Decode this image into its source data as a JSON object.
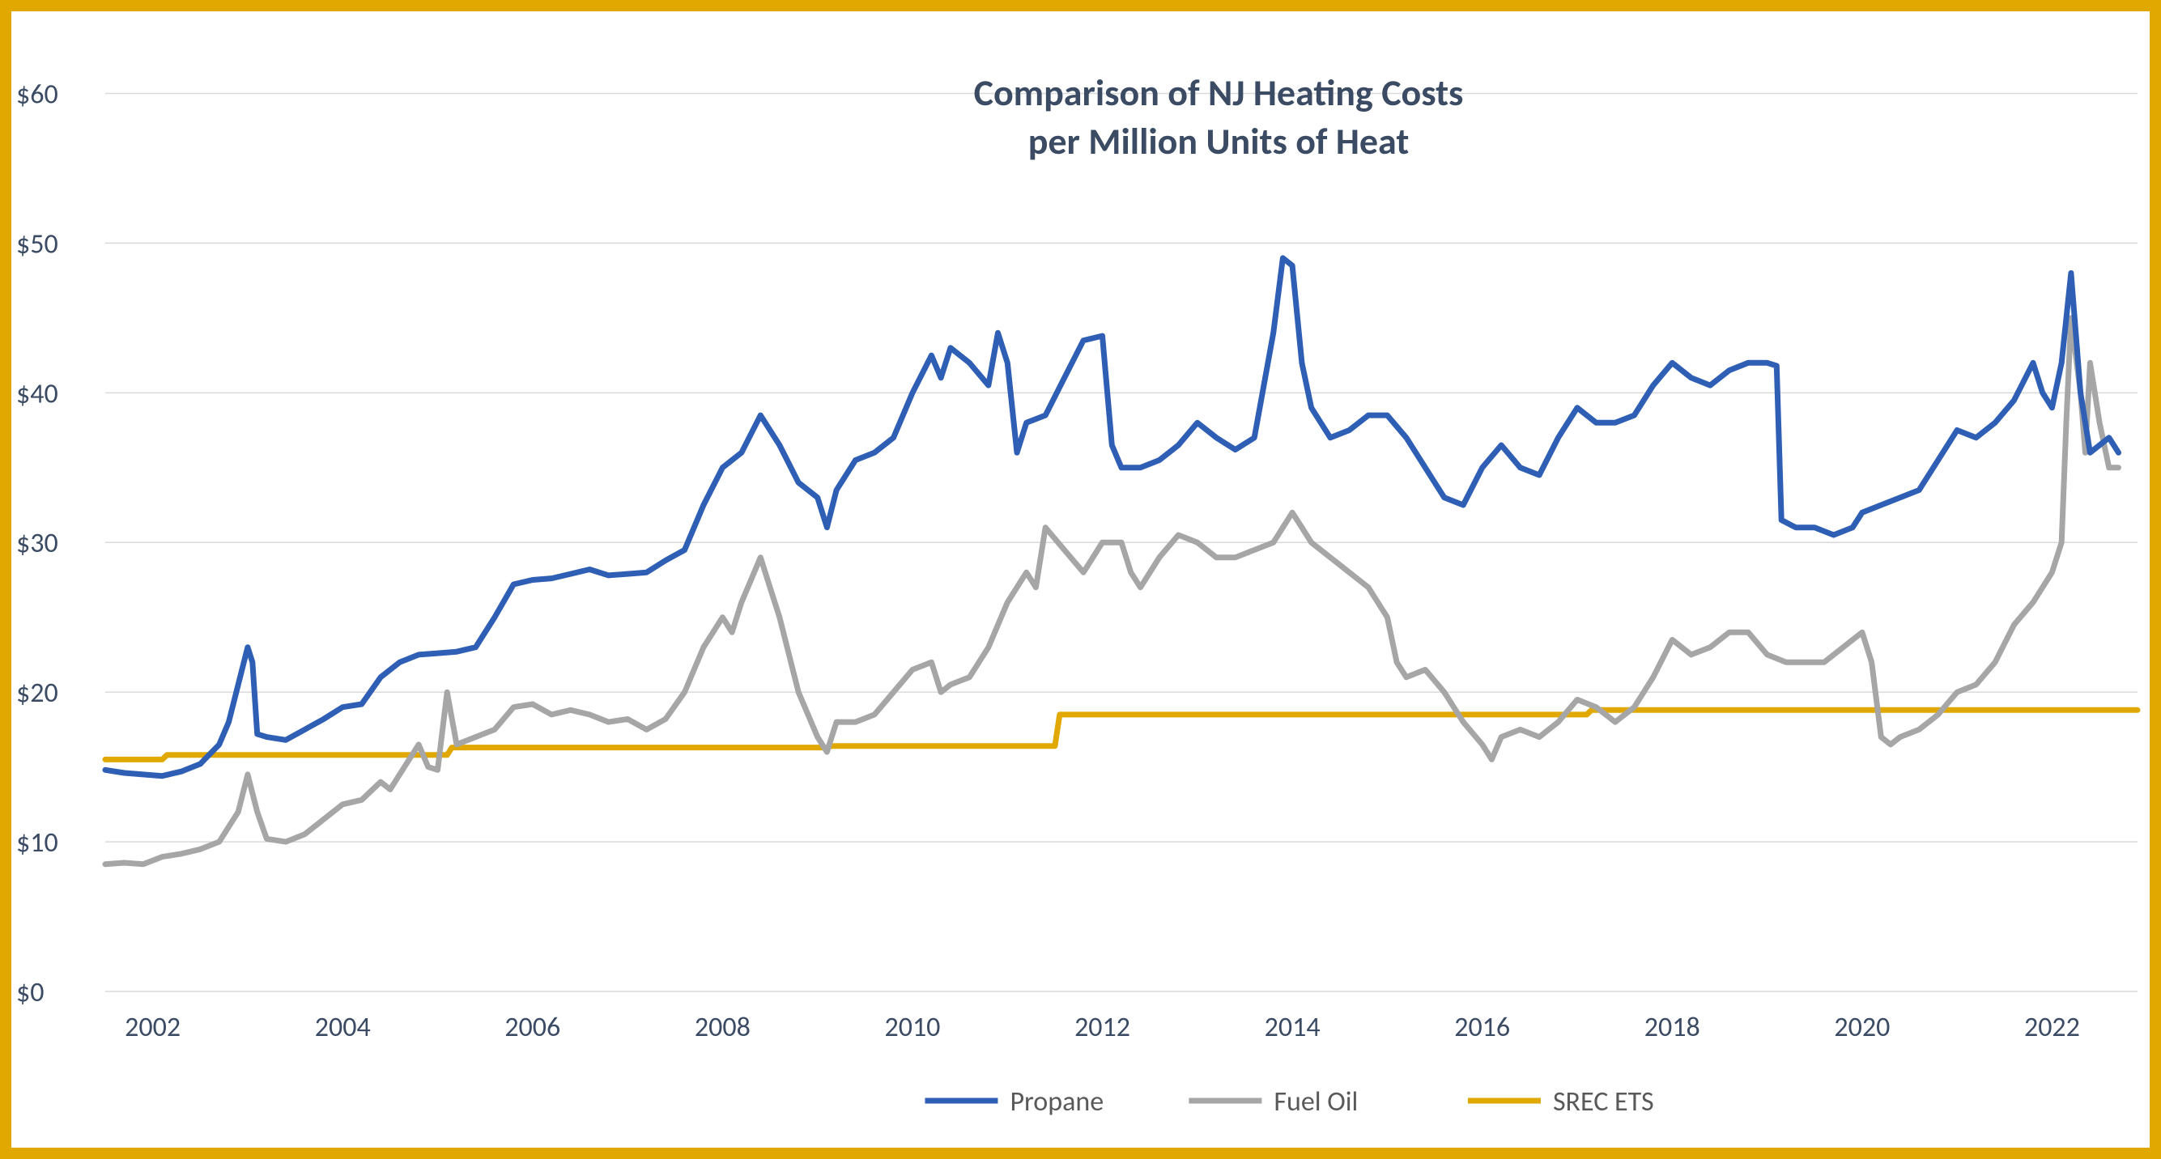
{
  "chart": {
    "type": "line",
    "title_line1": "Comparison of NJ Heating Costs",
    "title_line2": "per Million Units of Heat",
    "title_color": "#3b4b63",
    "title_fontsize": 46,
    "frame_border_color": "#e0a800",
    "frame_border_width": 14,
    "background_color": "#ffffff",
    "grid_color": "#d9d9d9",
    "grid_width": 1.5,
    "axis_label_color": "#3b4b63",
    "axis_label_fontsize": 34,
    "x": {
      "min": 2001.5,
      "max": 2022.9,
      "tick_start": 2002,
      "tick_step": 2,
      "tick_end": 2022,
      "tick_labels": [
        "2002",
        "2004",
        "2006",
        "2008",
        "2010",
        "2012",
        "2014",
        "2016",
        "2018",
        "2020",
        "2022"
      ]
    },
    "y": {
      "min": 0,
      "max": 63,
      "ticks": [
        0,
        10,
        20,
        30,
        40,
        50,
        60
      ],
      "tick_labels": [
        "$0",
        "$10",
        "$20",
        "$30",
        "$40",
        "$50",
        "$60"
      ]
    },
    "legend": {
      "fontsize": 34,
      "label_color": "#595959",
      "items": [
        {
          "label": "Propane",
          "color": "#2f5fb5",
          "width": 7
        },
        {
          "label": "Fuel Oil",
          "color": "#a6a6a6",
          "width": 7
        },
        {
          "label": "SREC ETS",
          "color": "#e0a800",
          "width": 7
        }
      ]
    },
    "series": [
      {
        "name": "Propane",
        "color": "#2f5fb5",
        "width": 7,
        "points": [
          [
            2001.5,
            14.8
          ],
          [
            2001.7,
            14.6
          ],
          [
            2001.9,
            14.5
          ],
          [
            2002.1,
            14.4
          ],
          [
            2002.3,
            14.7
          ],
          [
            2002.5,
            15.2
          ],
          [
            2002.7,
            16.5
          ],
          [
            2002.8,
            18.0
          ],
          [
            2002.9,
            20.5
          ],
          [
            2003.0,
            23.0
          ],
          [
            2003.05,
            22.0
          ],
          [
            2003.1,
            17.2
          ],
          [
            2003.2,
            17.0
          ],
          [
            2003.4,
            16.8
          ],
          [
            2003.6,
            17.5
          ],
          [
            2003.8,
            18.2
          ],
          [
            2004.0,
            19.0
          ],
          [
            2004.2,
            19.2
          ],
          [
            2004.4,
            21.0
          ],
          [
            2004.6,
            22.0
          ],
          [
            2004.8,
            22.5
          ],
          [
            2005.0,
            22.6
          ],
          [
            2005.2,
            22.7
          ],
          [
            2005.4,
            23.0
          ],
          [
            2005.6,
            25.0
          ],
          [
            2005.8,
            27.2
          ],
          [
            2006.0,
            27.5
          ],
          [
            2006.2,
            27.6
          ],
          [
            2006.4,
            27.9
          ],
          [
            2006.6,
            28.2
          ],
          [
            2006.8,
            27.8
          ],
          [
            2007.0,
            27.9
          ],
          [
            2007.2,
            28.0
          ],
          [
            2007.4,
            28.8
          ],
          [
            2007.6,
            29.5
          ],
          [
            2007.8,
            32.5
          ],
          [
            2008.0,
            35.0
          ],
          [
            2008.2,
            36.0
          ],
          [
            2008.4,
            38.5
          ],
          [
            2008.6,
            36.5
          ],
          [
            2008.8,
            34.0
          ],
          [
            2009.0,
            33.0
          ],
          [
            2009.1,
            31.0
          ],
          [
            2009.2,
            33.5
          ],
          [
            2009.4,
            35.5
          ],
          [
            2009.6,
            36.0
          ],
          [
            2009.8,
            37.0
          ],
          [
            2010.0,
            40.0
          ],
          [
            2010.2,
            42.5
          ],
          [
            2010.3,
            41.0
          ],
          [
            2010.4,
            43.0
          ],
          [
            2010.6,
            42.0
          ],
          [
            2010.8,
            40.5
          ],
          [
            2010.9,
            44.0
          ],
          [
            2011.0,
            42.0
          ],
          [
            2011.1,
            36.0
          ],
          [
            2011.2,
            38.0
          ],
          [
            2011.4,
            38.5
          ],
          [
            2011.6,
            41.0
          ],
          [
            2011.8,
            43.5
          ],
          [
            2012.0,
            43.8
          ],
          [
            2012.1,
            36.5
          ],
          [
            2012.2,
            35.0
          ],
          [
            2012.4,
            35.0
          ],
          [
            2012.6,
            35.5
          ],
          [
            2012.8,
            36.5
          ],
          [
            2013.0,
            38.0
          ],
          [
            2013.2,
            37.0
          ],
          [
            2013.4,
            36.2
          ],
          [
            2013.6,
            37.0
          ],
          [
            2013.8,
            44.0
          ],
          [
            2013.9,
            49.0
          ],
          [
            2014.0,
            48.5
          ],
          [
            2014.1,
            42.0
          ],
          [
            2014.2,
            39.0
          ],
          [
            2014.4,
            37.0
          ],
          [
            2014.6,
            37.5
          ],
          [
            2014.8,
            38.5
          ],
          [
            2015.0,
            38.5
          ],
          [
            2015.2,
            37.0
          ],
          [
            2015.4,
            35.0
          ],
          [
            2015.6,
            33.0
          ],
          [
            2015.8,
            32.5
          ],
          [
            2016.0,
            35.0
          ],
          [
            2016.2,
            36.5
          ],
          [
            2016.4,
            35.0
          ],
          [
            2016.6,
            34.5
          ],
          [
            2016.8,
            37.0
          ],
          [
            2017.0,
            39.0
          ],
          [
            2017.2,
            38.0
          ],
          [
            2017.4,
            38.0
          ],
          [
            2017.6,
            38.5
          ],
          [
            2017.8,
            40.5
          ],
          [
            2018.0,
            42.0
          ],
          [
            2018.2,
            41.0
          ],
          [
            2018.4,
            40.5
          ],
          [
            2018.6,
            41.5
          ],
          [
            2018.8,
            42.0
          ],
          [
            2019.0,
            42.0
          ],
          [
            2019.1,
            41.8
          ],
          [
            2019.15,
            31.5
          ],
          [
            2019.3,
            31.0
          ],
          [
            2019.5,
            31.0
          ],
          [
            2019.7,
            30.5
          ],
          [
            2019.9,
            31.0
          ],
          [
            2020.0,
            32.0
          ],
          [
            2020.2,
            32.5
          ],
          [
            2020.4,
            33.0
          ],
          [
            2020.6,
            33.5
          ],
          [
            2020.8,
            35.5
          ],
          [
            2021.0,
            37.5
          ],
          [
            2021.2,
            37.0
          ],
          [
            2021.4,
            38.0
          ],
          [
            2021.6,
            39.5
          ],
          [
            2021.8,
            42.0
          ],
          [
            2021.9,
            40.0
          ],
          [
            2022.0,
            39.0
          ],
          [
            2022.1,
            42.0
          ],
          [
            2022.2,
            48.0
          ],
          [
            2022.3,
            40.0
          ],
          [
            2022.4,
            36.0
          ],
          [
            2022.5,
            36.5
          ],
          [
            2022.6,
            37.0
          ],
          [
            2022.7,
            36.0
          ]
        ]
      },
      {
        "name": "Fuel Oil",
        "color": "#a6a6a6",
        "width": 7,
        "points": [
          [
            2001.5,
            8.5
          ],
          [
            2001.7,
            8.6
          ],
          [
            2001.9,
            8.5
          ],
          [
            2002.1,
            9.0
          ],
          [
            2002.3,
            9.2
          ],
          [
            2002.5,
            9.5
          ],
          [
            2002.7,
            10.0
          ],
          [
            2002.9,
            12.0
          ],
          [
            2003.0,
            14.5
          ],
          [
            2003.1,
            12.0
          ],
          [
            2003.2,
            10.2
          ],
          [
            2003.4,
            10.0
          ],
          [
            2003.6,
            10.5
          ],
          [
            2003.8,
            11.5
          ],
          [
            2004.0,
            12.5
          ],
          [
            2004.2,
            12.8
          ],
          [
            2004.4,
            14.0
          ],
          [
            2004.5,
            13.5
          ],
          [
            2004.6,
            14.5
          ],
          [
            2004.8,
            16.5
          ],
          [
            2004.9,
            15.0
          ],
          [
            2005.0,
            14.8
          ],
          [
            2005.1,
            20.0
          ],
          [
            2005.2,
            16.5
          ],
          [
            2005.4,
            17.0
          ],
          [
            2005.6,
            17.5
          ],
          [
            2005.8,
            19.0
          ],
          [
            2006.0,
            19.2
          ],
          [
            2006.2,
            18.5
          ],
          [
            2006.4,
            18.8
          ],
          [
            2006.6,
            18.5
          ],
          [
            2006.8,
            18.0
          ],
          [
            2007.0,
            18.2
          ],
          [
            2007.2,
            17.5
          ],
          [
            2007.4,
            18.2
          ],
          [
            2007.6,
            20.0
          ],
          [
            2007.8,
            23.0
          ],
          [
            2008.0,
            25.0
          ],
          [
            2008.1,
            24.0
          ],
          [
            2008.2,
            26.0
          ],
          [
            2008.4,
            29.0
          ],
          [
            2008.5,
            27.0
          ],
          [
            2008.6,
            25.0
          ],
          [
            2008.8,
            20.0
          ],
          [
            2009.0,
            17.0
          ],
          [
            2009.1,
            16.0
          ],
          [
            2009.2,
            18.0
          ],
          [
            2009.4,
            18.0
          ],
          [
            2009.6,
            18.5
          ],
          [
            2009.8,
            20.0
          ],
          [
            2010.0,
            21.5
          ],
          [
            2010.2,
            22.0
          ],
          [
            2010.3,
            20.0
          ],
          [
            2010.4,
            20.5
          ],
          [
            2010.6,
            21.0
          ],
          [
            2010.8,
            23.0
          ],
          [
            2011.0,
            26.0
          ],
          [
            2011.2,
            28.0
          ],
          [
            2011.3,
            27.0
          ],
          [
            2011.4,
            31.0
          ],
          [
            2011.6,
            29.5
          ],
          [
            2011.8,
            28.0
          ],
          [
            2012.0,
            30.0
          ],
          [
            2012.2,
            30.0
          ],
          [
            2012.3,
            28.0
          ],
          [
            2012.4,
            27.0
          ],
          [
            2012.6,
            29.0
          ],
          [
            2012.8,
            30.5
          ],
          [
            2013.0,
            30.0
          ],
          [
            2013.2,
            29.0
          ],
          [
            2013.4,
            29.0
          ],
          [
            2013.6,
            29.5
          ],
          [
            2013.8,
            30.0
          ],
          [
            2014.0,
            32.0
          ],
          [
            2014.1,
            31.0
          ],
          [
            2014.2,
            30.0
          ],
          [
            2014.4,
            29.0
          ],
          [
            2014.6,
            28.0
          ],
          [
            2014.8,
            27.0
          ],
          [
            2015.0,
            25.0
          ],
          [
            2015.1,
            22.0
          ],
          [
            2015.2,
            21.0
          ],
          [
            2015.4,
            21.5
          ],
          [
            2015.6,
            20.0
          ],
          [
            2015.8,
            18.0
          ],
          [
            2016.0,
            16.5
          ],
          [
            2016.1,
            15.5
          ],
          [
            2016.2,
            17.0
          ],
          [
            2016.4,
            17.5
          ],
          [
            2016.6,
            17.0
          ],
          [
            2016.8,
            18.0
          ],
          [
            2017.0,
            19.5
          ],
          [
            2017.2,
            19.0
          ],
          [
            2017.4,
            18.0
          ],
          [
            2017.6,
            19.0
          ],
          [
            2017.8,
            21.0
          ],
          [
            2018.0,
            23.5
          ],
          [
            2018.2,
            22.5
          ],
          [
            2018.4,
            23.0
          ],
          [
            2018.6,
            24.0
          ],
          [
            2018.8,
            24.0
          ],
          [
            2019.0,
            22.5
          ],
          [
            2019.2,
            22.0
          ],
          [
            2019.4,
            22.0
          ],
          [
            2019.6,
            22.0
          ],
          [
            2019.8,
            23.0
          ],
          [
            2020.0,
            24.0
          ],
          [
            2020.1,
            22.0
          ],
          [
            2020.2,
            17.0
          ],
          [
            2020.3,
            16.5
          ],
          [
            2020.4,
            17.0
          ],
          [
            2020.6,
            17.5
          ],
          [
            2020.8,
            18.5
          ],
          [
            2021.0,
            20.0
          ],
          [
            2021.2,
            20.5
          ],
          [
            2021.4,
            22.0
          ],
          [
            2021.6,
            24.5
          ],
          [
            2021.8,
            26.0
          ],
          [
            2022.0,
            28.0
          ],
          [
            2022.1,
            30.0
          ],
          [
            2022.15,
            38.0
          ],
          [
            2022.2,
            45.0
          ],
          [
            2022.3,
            40.0
          ],
          [
            2022.35,
            36.0
          ],
          [
            2022.4,
            42.0
          ],
          [
            2022.5,
            38.0
          ],
          [
            2022.6,
            35.0
          ],
          [
            2022.7,
            35.0
          ]
        ]
      },
      {
        "name": "SREC ETS",
        "color": "#e0a800",
        "width": 7,
        "points": [
          [
            2001.5,
            15.5
          ],
          [
            2002.1,
            15.5
          ],
          [
            2002.15,
            15.8
          ],
          [
            2005.1,
            15.8
          ],
          [
            2005.15,
            16.3
          ],
          [
            2009.1,
            16.3
          ],
          [
            2009.15,
            16.4
          ],
          [
            2011.5,
            16.4
          ],
          [
            2011.55,
            18.5
          ],
          [
            2017.1,
            18.5
          ],
          [
            2017.15,
            18.8
          ],
          [
            2022.9,
            18.8
          ]
        ]
      }
    ]
  }
}
